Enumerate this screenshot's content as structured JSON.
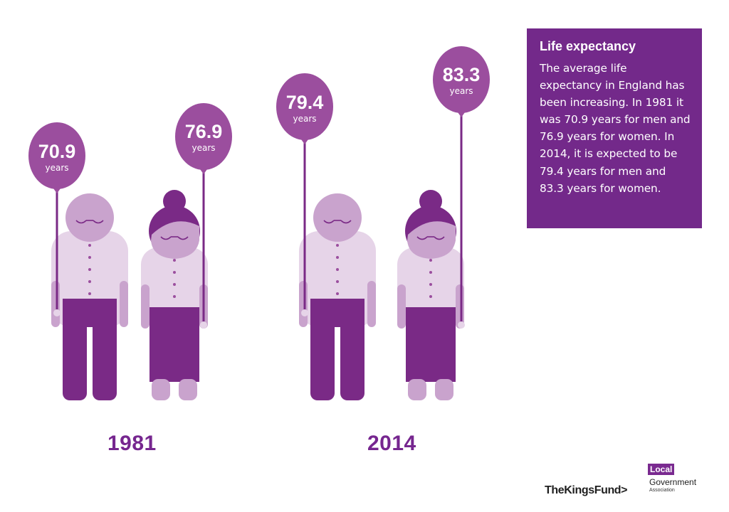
{
  "info": {
    "title": "Life expectancy",
    "body": "The average life expectancy in England has been increasing. In 1981 it was 70.9 years for men and 76.9 years for women. In 2014, it is expected to be 79.4 years for men and 83.3 years for women."
  },
  "groups": [
    {
      "year": "1981",
      "man": {
        "value": "70.9",
        "unit": "years"
      },
      "woman": {
        "value": "76.9",
        "unit": "years"
      }
    },
    {
      "year": "2014",
      "man": {
        "value": "79.4",
        "unit": "years"
      },
      "woman": {
        "value": "83.3",
        "unit": "years"
      }
    }
  ],
  "logos": {
    "kings_fund": "TheKingsFund>",
    "lga_local": "Local",
    "lga_government": "Government",
    "lga_association": "Association"
  },
  "colors": {
    "balloon": "#9b4e9e",
    "box": "#73298a",
    "dark_purple": "#7a2a86",
    "light_lilac": "#e6d4e8",
    "face_lilac": "#c9a3cd"
  }
}
